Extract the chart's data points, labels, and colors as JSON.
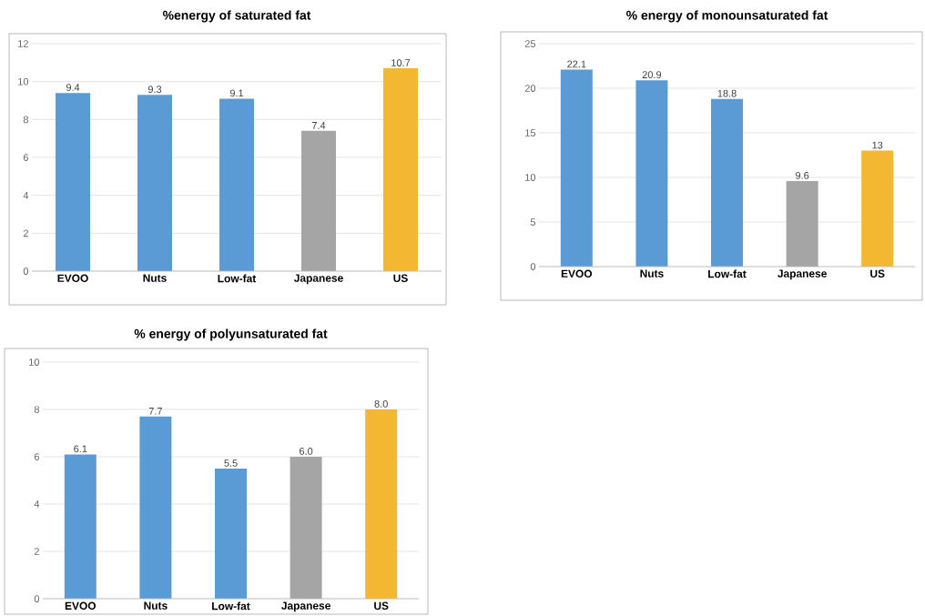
{
  "chart_data": [
    {
      "type": "bar",
      "title": "%energy of saturated fat",
      "categories": [
        "EVOO",
        "Nuts",
        "Low-fat",
        "Japanese",
        "US"
      ],
      "values": [
        9.4,
        9.3,
        9.1,
        7.4,
        10.7
      ],
      "value_labels": [
        "9.4",
        "9.3",
        "9.1",
        "7.4",
        "10.7"
      ],
      "colors": [
        "#5b9bd5",
        "#5b9bd5",
        "#5b9bd5",
        "#a5a5a5",
        "#f4b731"
      ],
      "ylim": [
        0,
        12
      ],
      "yticks": [
        0,
        2,
        4,
        6,
        8,
        10,
        12
      ],
      "grid": "y"
    },
    {
      "type": "bar",
      "title": "% energy of monounsaturated fat",
      "categories": [
        "EVOO",
        "Nuts",
        "Low-fat",
        "Japanese",
        "US"
      ],
      "values": [
        22.1,
        20.9,
        18.8,
        9.6,
        13
      ],
      "value_labels": [
        "22.1",
        "20.9",
        "18.8",
        "9.6",
        "13"
      ],
      "colors": [
        "#5b9bd5",
        "#5b9bd5",
        "#5b9bd5",
        "#a5a5a5",
        "#f4b731"
      ],
      "ylim": [
        0,
        25
      ],
      "yticks": [
        0,
        5,
        10,
        15,
        20,
        25
      ],
      "grid": "y"
    },
    {
      "type": "bar",
      "title": "% energy of polyunsaturated fat",
      "categories": [
        "EVOO",
        "Nuts",
        "Low-fat",
        "Japanese",
        "US"
      ],
      "values": [
        6.1,
        7.7,
        5.5,
        6.0,
        8.0
      ],
      "value_labels": [
        "6.1",
        "7.7",
        "5.5",
        "6.0",
        "8.0"
      ],
      "colors": [
        "#5b9bd5",
        "#5b9bd5",
        "#5b9bd5",
        "#a5a5a5",
        "#f4b731"
      ],
      "ylim": [
        0,
        10
      ],
      "yticks": [
        0,
        2,
        4,
        6,
        8,
        10
      ],
      "grid": "y"
    }
  ]
}
